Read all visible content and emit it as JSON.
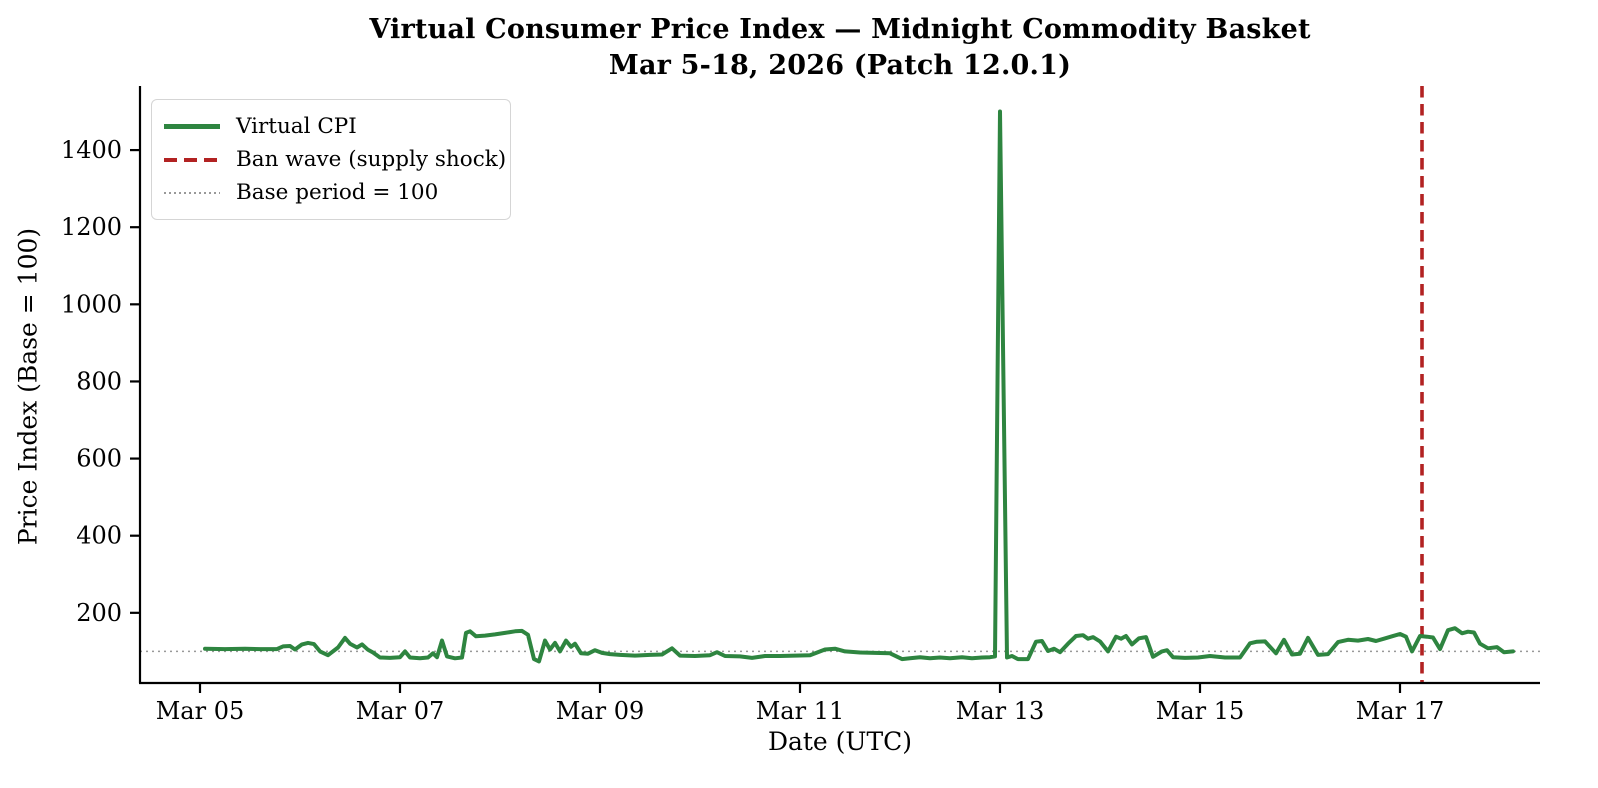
{
  "chart_data": {
    "type": "line",
    "title_line1": "Virtual Consumer Price Index — Midnight Commodity Basket",
    "title_line2": "Mar 5-18, 2026  (Patch 12.0.1)",
    "xlabel": "Date (UTC)",
    "ylabel": "Price Index (Base = 100)",
    "xlim_days": [
      -0.6,
      13.4
    ],
    "ylim": [
      18,
      1561
    ],
    "grid": false,
    "x_ticks": [
      {
        "day": 0,
        "label": "Mar 05"
      },
      {
        "day": 2,
        "label": "Mar 07"
      },
      {
        "day": 4,
        "label": "Mar 09"
      },
      {
        "day": 6,
        "label": "Mar 11"
      },
      {
        "day": 8,
        "label": "Mar 13"
      },
      {
        "day": 10,
        "label": "Mar 15"
      },
      {
        "day": 12,
        "label": "Mar 17"
      }
    ],
    "y_ticks": [
      200,
      400,
      600,
      800,
      1000,
      1200,
      1400
    ],
    "base_period_value": 100,
    "ban_wave_day": 12.22,
    "legend": {
      "position": "upper-left",
      "items": [
        {
          "label": "Virtual CPI",
          "style": "solid",
          "color": "#2e8540"
        },
        {
          "label": "Ban wave (supply shock)",
          "style": "dashed",
          "color": "#b22222"
        },
        {
          "label": "Base period = 100",
          "style": "dotted",
          "color": "#999999"
        }
      ]
    },
    "colors": {
      "series": "#2e8540",
      "ban_wave": "#b22222",
      "base_line": "#999999",
      "spine": "#000000"
    },
    "series": [
      {
        "name": "Virtual CPI",
        "x_unit": "days_since_Mar_05_00UTC",
        "points": [
          [
            0.05,
            107
          ],
          [
            0.25,
            106
          ],
          [
            0.45,
            107
          ],
          [
            0.6,
            106
          ],
          [
            0.77,
            106
          ],
          [
            0.83,
            113
          ],
          [
            0.9,
            114
          ],
          [
            0.95,
            105
          ],
          [
            1.02,
            118
          ],
          [
            1.08,
            122
          ],
          [
            1.14,
            119
          ],
          [
            1.2,
            100
          ],
          [
            1.28,
            90
          ],
          [
            1.38,
            110
          ],
          [
            1.45,
            135
          ],
          [
            1.5,
            120
          ],
          [
            1.57,
            110
          ],
          [
            1.62,
            118
          ],
          [
            1.68,
            104
          ],
          [
            1.73,
            97
          ],
          [
            1.8,
            84
          ],
          [
            1.9,
            83
          ],
          [
            2.0,
            85
          ],
          [
            2.05,
            100
          ],
          [
            2.1,
            84
          ],
          [
            2.2,
            82
          ],
          [
            2.28,
            84
          ],
          [
            2.33,
            95
          ],
          [
            2.37,
            85
          ],
          [
            2.42,
            128
          ],
          [
            2.47,
            87
          ],
          [
            2.55,
            82
          ],
          [
            2.62,
            84
          ],
          [
            2.66,
            148
          ],
          [
            2.7,
            152
          ],
          [
            2.76,
            139
          ],
          [
            2.85,
            141
          ],
          [
            2.95,
            144
          ],
          [
            3.05,
            148
          ],
          [
            3.15,
            152
          ],
          [
            3.22,
            153
          ],
          [
            3.28,
            143
          ],
          [
            3.34,
            80
          ],
          [
            3.39,
            74
          ],
          [
            3.45,
            128
          ],
          [
            3.5,
            105
          ],
          [
            3.55,
            122
          ],
          [
            3.6,
            100
          ],
          [
            3.66,
            128
          ],
          [
            3.71,
            112
          ],
          [
            3.75,
            120
          ],
          [
            3.81,
            95
          ],
          [
            3.88,
            94
          ],
          [
            3.95,
            103
          ],
          [
            4.02,
            96
          ],
          [
            4.1,
            93
          ],
          [
            4.2,
            91
          ],
          [
            4.35,
            89
          ],
          [
            4.5,
            91
          ],
          [
            4.62,
            92
          ],
          [
            4.72,
            108
          ],
          [
            4.8,
            89
          ],
          [
            4.95,
            88
          ],
          [
            5.1,
            90
          ],
          [
            5.17,
            98
          ],
          [
            5.25,
            88
          ],
          [
            5.4,
            87
          ],
          [
            5.52,
            83
          ],
          [
            5.65,
            88
          ],
          [
            5.8,
            88
          ],
          [
            5.95,
            89
          ],
          [
            6.1,
            90
          ],
          [
            6.25,
            105
          ],
          [
            6.35,
            107
          ],
          [
            6.45,
            100
          ],
          [
            6.6,
            97
          ],
          [
            6.75,
            96
          ],
          [
            6.9,
            95
          ],
          [
            7.02,
            80
          ],
          [
            7.1,
            82
          ],
          [
            7.2,
            85
          ],
          [
            7.3,
            82
          ],
          [
            7.4,
            84
          ],
          [
            7.5,
            82
          ],
          [
            7.62,
            85
          ],
          [
            7.72,
            82
          ],
          [
            7.82,
            84
          ],
          [
            7.9,
            85
          ],
          [
            7.95,
            87
          ],
          [
            8.0,
            1500
          ],
          [
            8.07,
            84
          ],
          [
            8.12,
            88
          ],
          [
            8.18,
            80
          ],
          [
            8.28,
            80
          ],
          [
            8.36,
            125
          ],
          [
            8.42,
            127
          ],
          [
            8.48,
            101
          ],
          [
            8.54,
            107
          ],
          [
            8.6,
            98
          ],
          [
            8.68,
            120
          ],
          [
            8.76,
            140
          ],
          [
            8.83,
            142
          ],
          [
            8.88,
            133
          ],
          [
            8.93,
            137
          ],
          [
            9.0,
            126
          ],
          [
            9.08,
            100
          ],
          [
            9.16,
            138
          ],
          [
            9.21,
            133
          ],
          [
            9.26,
            140
          ],
          [
            9.32,
            118
          ],
          [
            9.39,
            134
          ],
          [
            9.46,
            137
          ],
          [
            9.53,
            86
          ],
          [
            9.62,
            100
          ],
          [
            9.67,
            103
          ],
          [
            9.73,
            85
          ],
          [
            9.85,
            83
          ],
          [
            9.98,
            84
          ],
          [
            10.1,
            88
          ],
          [
            10.25,
            84
          ],
          [
            10.4,
            84
          ],
          [
            10.5,
            121
          ],
          [
            10.57,
            125
          ],
          [
            10.65,
            126
          ],
          [
            10.76,
            95
          ],
          [
            10.84,
            130
          ],
          [
            10.92,
            92
          ],
          [
            11.0,
            94
          ],
          [
            11.08,
            135
          ],
          [
            11.18,
            91
          ],
          [
            11.28,
            93
          ],
          [
            11.38,
            124
          ],
          [
            11.48,
            130
          ],
          [
            11.58,
            128
          ],
          [
            11.68,
            132
          ],
          [
            11.76,
            127
          ],
          [
            11.84,
            133
          ],
          [
            11.92,
            139
          ],
          [
            12.0,
            145
          ],
          [
            12.06,
            138
          ],
          [
            12.12,
            100
          ],
          [
            12.2,
            140
          ],
          [
            12.27,
            138
          ],
          [
            12.33,
            136
          ],
          [
            12.4,
            106
          ],
          [
            12.48,
            155
          ],
          [
            12.55,
            160
          ],
          [
            12.62,
            147
          ],
          [
            12.68,
            151
          ],
          [
            12.74,
            149
          ],
          [
            12.8,
            120
          ],
          [
            12.88,
            108
          ],
          [
            12.97,
            111
          ],
          [
            13.04,
            98
          ],
          [
            13.13,
            100
          ]
        ]
      }
    ]
  }
}
